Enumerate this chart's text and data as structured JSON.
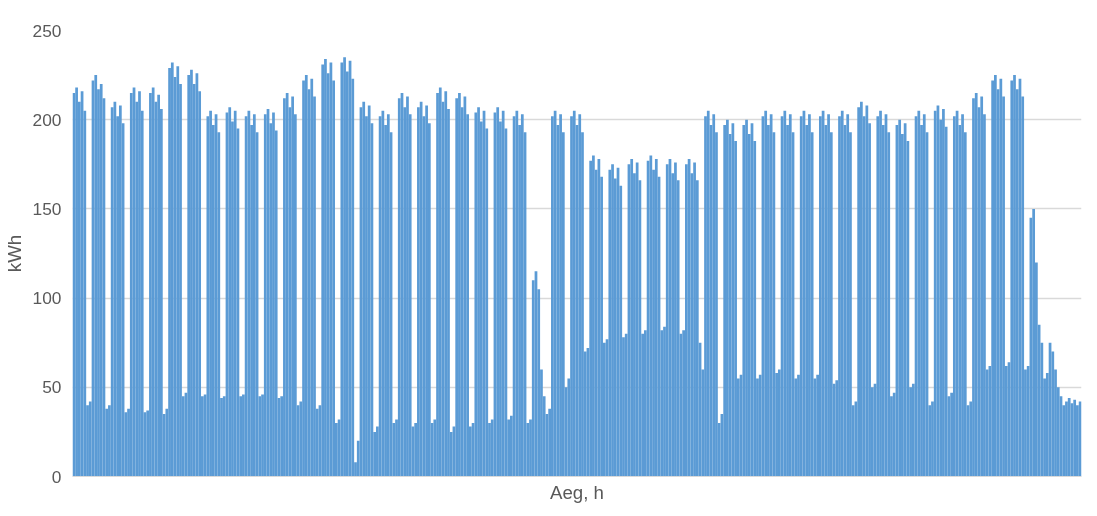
{
  "chart_data": {
    "type": "bar",
    "xlabel": "Aeg, h",
    "ylabel": "kWh",
    "color": "#5b9bd5",
    "ylim": [
      0,
      250
    ],
    "yticks": [
      0,
      50,
      100,
      150,
      200,
      250
    ],
    "grid": "y",
    "categories": [
      null,
      null,
      null,
      null,
      null,
      null,
      null,
      null,
      null,
      null,
      null,
      null,
      null,
      null,
      null,
      null,
      null,
      null,
      null,
      null,
      null,
      null,
      null,
      null,
      null,
      null,
      null,
      null,
      null,
      null,
      null,
      null,
      null,
      null,
      null,
      null,
      null,
      null,
      null,
      null,
      null,
      null,
      null,
      null,
      null,
      null,
      null,
      null,
      null,
      null,
      null,
      null,
      null,
      null,
      null,
      null,
      null,
      null,
      null,
      null,
      null,
      null,
      null,
      null,
      null,
      null,
      null,
      null,
      null,
      null,
      null,
      null,
      null,
      null,
      null,
      null,
      null,
      null,
      null,
      null,
      null,
      null,
      null,
      null,
      null,
      null,
      null,
      null,
      null,
      null,
      null,
      null,
      null,
      null,
      null,
      null,
      null,
      null,
      null,
      null,
      null,
      null,
      null,
      null,
      null,
      null,
      null,
      null,
      null,
      null,
      null,
      null,
      null,
      null,
      null,
      null,
      null,
      null,
      null,
      null,
      null,
      null,
      null,
      null,
      null,
      null,
      null,
      null,
      null,
      null,
      null,
      null,
      null,
      null,
      null,
      null,
      null,
      null,
      null,
      null,
      null,
      null,
      null,
      null,
      null,
      null,
      null,
      null,
      null,
      null,
      null,
      null,
      null,
      null,
      null,
      null,
      null,
      null,
      null,
      null,
      null,
      null,
      null,
      null,
      null,
      null,
      null,
      null,
      null,
      null,
      null,
      null,
      null,
      null,
      null,
      null,
      null,
      null,
      null,
      null,
      null,
      null,
      null,
      null,
      null,
      null,
      null,
      null,
      null,
      null,
      null,
      null,
      null,
      null,
      null,
      null,
      null,
      null,
      null,
      null,
      null,
      null,
      null,
      null,
      null,
      null,
      null,
      null,
      null,
      null,
      null,
      null,
      null,
      null,
      null,
      null,
      null,
      null,
      null,
      null,
      null,
      null,
      null,
      null,
      null,
      null,
      null,
      null,
      null,
      null,
      null,
      null,
      null,
      null,
      null,
      null,
      null,
      null,
      null,
      null,
      null,
      null,
      null,
      null,
      null,
      null,
      null,
      null,
      null,
      null,
      null,
      null,
      null,
      null,
      null,
      null,
      null,
      null,
      null,
      null,
      null,
      null,
      null,
      null,
      null,
      null,
      null,
      null,
      null,
      null,
      null,
      null,
      null,
      null,
      null,
      null,
      null,
      null,
      null,
      null,
      null,
      null,
      null,
      null,
      null,
      null,
      null,
      null,
      null,
      null,
      null,
      null,
      null,
      null,
      null,
      null,
      null,
      null,
      null,
      null,
      null,
      null,
      null,
      null,
      null,
      null,
      null,
      null,
      null,
      null,
      null,
      null,
      null,
      null,
      null,
      null,
      null,
      null,
      null,
      null,
      null,
      null,
      null,
      null,
      null,
      null,
      null,
      null,
      null,
      null,
      null,
      null,
      null,
      null,
      null,
      null,
      null,
      null,
      null,
      null,
      null,
      null,
      null,
      null,
      null,
      null,
      null,
      null,
      null,
      null,
      null,
      null,
      null,
      null,
      null,
      null,
      null,
      null,
      null,
      null,
      null,
      null,
      null,
      null,
      null,
      null,
      null,
      null,
      null
    ],
    "values": [
      215,
      218,
      210,
      216,
      205,
      40,
      42,
      222,
      225,
      217,
      220,
      212,
      38,
      40,
      207,
      210,
      202,
      208,
      198,
      36,
      38,
      215,
      218,
      210,
      216,
      205,
      36,
      37,
      215,
      218,
      210,
      214,
      206,
      35,
      38,
      229,
      232,
      224,
      230,
      220,
      45,
      47,
      225,
      228,
      220,
      226,
      216,
      45,
      46,
      202,
      205,
      197,
      203,
      193,
      44,
      45,
      204,
      207,
      199,
      205,
      195,
      45,
      46,
      202,
      205,
      197,
      203,
      193,
      45,
      46,
      203,
      206,
      198,
      204,
      194,
      44,
      45,
      212,
      215,
      207,
      213,
      203,
      40,
      42,
      222,
      225,
      217,
      223,
      213,
      38,
      40,
      231,
      234,
      226,
      232,
      222,
      30,
      32,
      232,
      235,
      227,
      233,
      223,
      8,
      20,
      207,
      210,
      202,
      208,
      198,
      25,
      28,
      202,
      205,
      197,
      203,
      193,
      30,
      32,
      212,
      215,
      207,
      213,
      203,
      28,
      30,
      207,
      210,
      202,
      208,
      198,
      30,
      32,
      215,
      218,
      210,
      216,
      206,
      25,
      28,
      212,
      215,
      207,
      213,
      203,
      28,
      30,
      204,
      207,
      199,
      205,
      195,
      30,
      32,
      204,
      207,
      199,
      205,
      195,
      32,
      34,
      202,
      205,
      197,
      203,
      193,
      30,
      32,
      110,
      115,
      105,
      60,
      45,
      35,
      38,
      202,
      205,
      197,
      203,
      193,
      50,
      55,
      202,
      205,
      197,
      203,
      193,
      70,
      72,
      177,
      180,
      172,
      178,
      168,
      75,
      77,
      172,
      175,
      167,
      173,
      163,
      78,
      80,
      175,
      178,
      170,
      176,
      166,
      80,
      82,
      177,
      180,
      172,
      178,
      168,
      82,
      84,
      175,
      178,
      170,
      176,
      166,
      80,
      82,
      175,
      178,
      170,
      176,
      166,
      75,
      60,
      202,
      205,
      197,
      203,
      193,
      30,
      35,
      197,
      200,
      192,
      198,
      188,
      55,
      57,
      197,
      200,
      192,
      198,
      188,
      55,
      57,
      202,
      205,
      197,
      203,
      193,
      58,
      60,
      202,
      205,
      197,
      203,
      193,
      55,
      57,
      202,
      205,
      197,
      203,
      193,
      55,
      57,
      202,
      205,
      197,
      203,
      193,
      52,
      54,
      202,
      205,
      197,
      203,
      193,
      40,
      42,
      207,
      210,
      202,
      208,
      198,
      50,
      52,
      202,
      205,
      197,
      203,
      193,
      45,
      47,
      197,
      200,
      192,
      198,
      188,
      50,
      52,
      202,
      205,
      197,
      203,
      193,
      40,
      42,
      205,
      208,
      200,
      206,
      196,
      45,
      47,
      202,
      205,
      197,
      203,
      193,
      40,
      42,
      212,
      215,
      207,
      213,
      203,
      60,
      62,
      222,
      225,
      217,
      223,
      213,
      62,
      64,
      222,
      225,
      217,
      223,
      213,
      60,
      62,
      145,
      150,
      120,
      85,
      75,
      55,
      58,
      75,
      70,
      60,
      50,
      45,
      40,
      42,
      44,
      41,
      43,
      40,
      42
    ]
  }
}
